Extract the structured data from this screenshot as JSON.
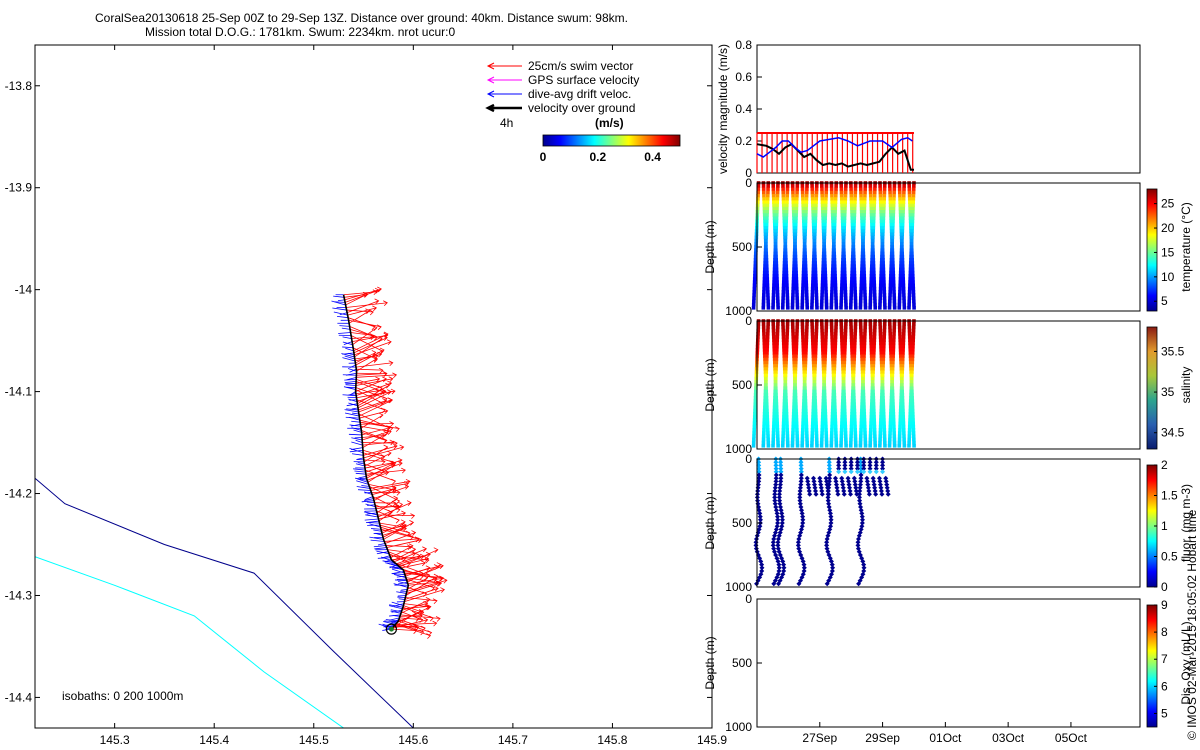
{
  "title_line1": "CoralSea20130618 25-Sep 00Z to 29-Sep 13Z. Distance over ground: 40km. Distance swum: 98km.",
  "title_line2": "Mission total D.O.G.: 1781km. Swum: 2234km. nrot ucur:0",
  "colors": {
    "swim": "#ff0000",
    "gps": "#ff00ff",
    "drift": "#0000ff",
    "ground": "#000000",
    "isobath_0": "#00008b",
    "isobath_200": "#00ffff",
    "isobath_1000": "#0000ff"
  },
  "chart_data": [
    {
      "type": "map",
      "legend": {
        "swim": "25cm/s swim vector",
        "gps": "GPS surface velocity",
        "drift": "dive-avg drift veloc.",
        "ground": "velocity over ground",
        "time_scale": "4h",
        "colorbar_title": "(m/s)",
        "colorbar_ticks": [
          "0",
          "0.2",
          "0.4"
        ],
        "colorbar_range": [
          0,
          0.5
        ]
      },
      "isobath_label": "isobaths: 0   200  1000m",
      "xlim": [
        145.22,
        145.9
      ],
      "ylim": [
        -14.43,
        -13.76
      ],
      "xticks": [
        "145.3",
        "145.4",
        "145.5",
        "145.6",
        "145.7",
        "145.8",
        "145.9"
      ],
      "xtick_values": [
        145.3,
        145.4,
        145.5,
        145.6,
        145.7,
        145.8,
        145.9
      ],
      "yticks": [
        "-13.8",
        "-13.9",
        "-14",
        "-14.1",
        "-14.2",
        "-14.3",
        "-14.4"
      ],
      "ytick_values": [
        -13.8,
        -13.9,
        -14.0,
        -14.1,
        -14.2,
        -14.3,
        -14.4
      ],
      "track": [
        [
          145.53,
          -14.005
        ],
        [
          145.535,
          -14.03
        ],
        [
          145.54,
          -14.06
        ],
        [
          145.543,
          -14.08
        ],
        [
          145.542,
          -14.1
        ],
        [
          145.545,
          -14.12
        ],
        [
          145.548,
          -14.14
        ],
        [
          145.55,
          -14.165
        ],
        [
          145.553,
          -14.185
        ],
        [
          145.56,
          -14.205
        ],
        [
          145.565,
          -14.225
        ],
        [
          145.57,
          -14.245
        ],
        [
          145.578,
          -14.265
        ],
        [
          145.59,
          -14.275
        ],
        [
          145.595,
          -14.29
        ],
        [
          145.59,
          -14.31
        ],
        [
          145.585,
          -14.325
        ],
        [
          145.578,
          -14.333
        ]
      ],
      "isobath_0": [
        [
          145.22,
          -14.185
        ],
        [
          145.25,
          -14.21
        ],
        [
          145.35,
          -14.25
        ],
        [
          145.44,
          -14.278
        ],
        [
          145.52,
          -14.355
        ],
        [
          145.6,
          -14.43
        ]
      ],
      "isobath_200": [
        [
          145.22,
          -14.262
        ],
        [
          145.3,
          -14.29
        ],
        [
          145.38,
          -14.32
        ],
        [
          145.45,
          -14.375
        ],
        [
          145.53,
          -14.43
        ]
      ],
      "end_marker": [
        145.578,
        -14.333
      ]
    },
    {
      "type": "line",
      "ylabel": "velocity magnitude (m/s)",
      "ylim": [
        0,
        0.8
      ],
      "yticks": [
        "0",
        "0.2",
        "0.4",
        "0.6",
        "0.8"
      ],
      "ytick_values": [
        0,
        0.2,
        0.4,
        0.6,
        0.8
      ],
      "swim_speed": 0.25,
      "drift_series": [
        [
          0,
          0.12
        ],
        [
          0.2,
          0.1
        ],
        [
          0.4,
          0.13
        ],
        [
          0.6,
          0.16
        ],
        [
          0.8,
          0.2
        ],
        [
          1.0,
          0.2
        ],
        [
          1.2,
          0.16
        ],
        [
          1.4,
          0.13
        ],
        [
          1.6,
          0.14
        ],
        [
          1.8,
          0.17
        ],
        [
          2.0,
          0.2
        ],
        [
          2.3,
          0.21
        ],
        [
          2.6,
          0.22
        ],
        [
          2.9,
          0.2
        ],
        [
          3.2,
          0.17
        ],
        [
          3.6,
          0.2
        ],
        [
          4.0,
          0.2
        ],
        [
          4.3,
          0.16
        ],
        [
          4.6,
          0.21
        ],
        [
          4.8,
          0.22
        ],
        [
          4.95,
          0.2
        ]
      ],
      "ground_series": [
        [
          0,
          0.18
        ],
        [
          0.3,
          0.17
        ],
        [
          0.5,
          0.15
        ],
        [
          0.7,
          0.12
        ],
        [
          0.9,
          0.16
        ],
        [
          1.1,
          0.18
        ],
        [
          1.3,
          0.14
        ],
        [
          1.5,
          0.1
        ],
        [
          1.7,
          0.12
        ],
        [
          1.9,
          0.08
        ],
        [
          2.1,
          0.05
        ],
        [
          2.3,
          0.06
        ],
        [
          2.5,
          0.05
        ],
        [
          2.7,
          0.06
        ],
        [
          2.9,
          0.04
        ],
        [
          3.1,
          0.05
        ],
        [
          3.3,
          0.06
        ],
        [
          3.5,
          0.05
        ],
        [
          3.7,
          0.06
        ],
        [
          3.9,
          0.07
        ],
        [
          4.1,
          0.12
        ],
        [
          4.3,
          0.16
        ],
        [
          4.5,
          0.12
        ],
        [
          4.7,
          0.14
        ],
        [
          4.9,
          0.02
        ],
        [
          5.0,
          0.02
        ]
      ]
    },
    {
      "type": "scatter",
      "ylabel": "Depth (m)",
      "cbar_label": "temperature (°C)",
      "cbar_ticks": [
        "5",
        "10",
        "15",
        "20",
        "25"
      ],
      "cbar_tick_values": [
        5,
        10,
        15,
        20,
        25
      ],
      "cbar_range": [
        3,
        28
      ],
      "yticks": [
        "0",
        "500",
        "1000"
      ],
      "surface_value": 27.5,
      "deep_value": 4,
      "profiles": 33,
      "max_depth": 980
    },
    {
      "type": "scatter",
      "ylabel": "Depth (m)",
      "cbar_label": "salinity",
      "cbar_ticks": [
        "34.5",
        "35",
        "35.5"
      ],
      "cbar_tick_values": [
        34.5,
        35,
        35.5
      ],
      "cbar_range": [
        34.3,
        35.8
      ],
      "yticks": [
        "0",
        "500",
        "1000"
      ],
      "profiles": 33,
      "max_depth": 980
    },
    {
      "type": "scatter",
      "ylabel": "Depth (m)",
      "cbar_label": "fluor. (mg m-3)",
      "cbar_ticks": [
        "0",
        "0.5",
        "1",
        "1.5",
        "2"
      ],
      "cbar_tick_values": [
        0,
        0.5,
        1,
        1.5,
        2
      ],
      "cbar_range": [
        0,
        2
      ],
      "yticks": [
        "0",
        "500",
        "1000"
      ],
      "deep_casts": [
        0.05,
        0.6,
        0.75,
        1.4,
        2.3,
        3.3
      ],
      "shallow_casts": [
        1.6,
        1.8,
        2.0,
        2.2,
        2.5,
        2.7,
        2.9,
        3.1,
        3.5,
        3.7,
        3.9,
        4.1
      ],
      "surface_casts": [
        2.6,
        2.8,
        3.0,
        3.2,
        3.4,
        3.6,
        3.8,
        4.0
      ]
    },
    {
      "type": "scatter",
      "ylabel": "Depth (m)",
      "cbar_label": "Dis. Oxy (mL/L)",
      "cbar_ticks": [
        "5",
        "6",
        "7",
        "8",
        "9"
      ],
      "cbar_tick_values": [
        5,
        6,
        7,
        8,
        9
      ],
      "cbar_range": [
        4.5,
        9
      ],
      "yticks": [
        "0",
        "500",
        "1000"
      ],
      "xticks": [
        "27Sep",
        "29Sep",
        "01Oct",
        "03Oct",
        "05Oct"
      ],
      "xtick_days": [
        2,
        4,
        6,
        8,
        10
      ],
      "xlim_days": [
        0,
        12.2
      ]
    }
  ],
  "footer": "© IMOS 02-Mar-2015 18:05:02 Hobart time"
}
